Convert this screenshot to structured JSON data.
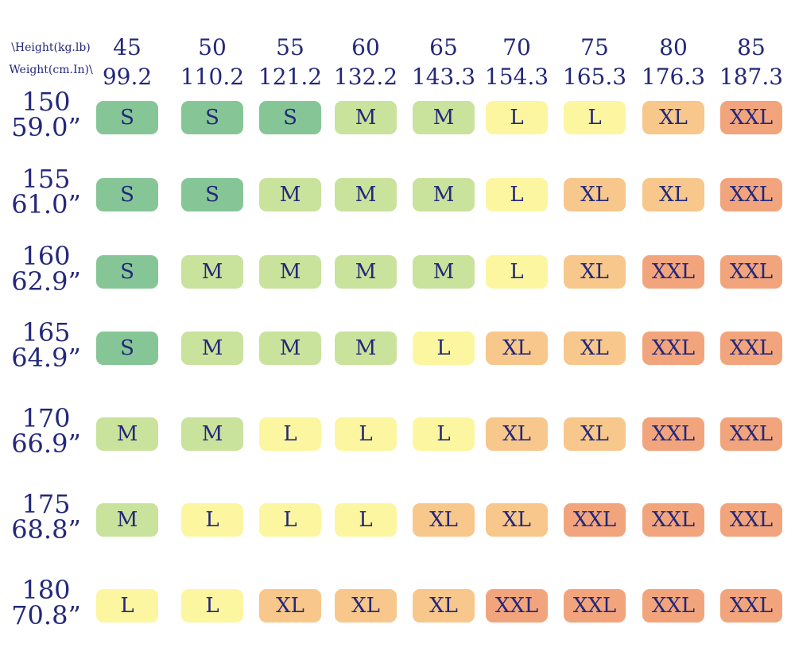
{
  "header": {
    "corner_top": "\\Height(kg.lb)",
    "corner_bottom": "Weight(cm.In)\\"
  },
  "columns": [
    {
      "kg": "45",
      "lb": "99.2"
    },
    {
      "kg": "50",
      "lb": "110.2"
    },
    {
      "kg": "55",
      "lb": "121.2"
    },
    {
      "kg": "60",
      "lb": "132.2"
    },
    {
      "kg": "65",
      "lb": "143.3"
    },
    {
      "kg": "70",
      "lb": "154.3"
    },
    {
      "kg": "75",
      "lb": "165.3"
    },
    {
      "kg": "80",
      "lb": "176.3"
    },
    {
      "kg": "85",
      "lb": "187.3"
    }
  ],
  "rows": [
    {
      "cm": "150",
      "in": "59.0”",
      "sizes": [
        "S",
        "S",
        "S",
        "M",
        "M",
        "L",
        "L",
        "XL",
        "XXL"
      ]
    },
    {
      "cm": "155",
      "in": "61.0”",
      "sizes": [
        "S",
        "S",
        "M",
        "M",
        "M",
        "L",
        "XL",
        "XL",
        "XXL"
      ]
    },
    {
      "cm": "160",
      "in": "62.9”",
      "sizes": [
        "S",
        "M",
        "M",
        "M",
        "M",
        "L",
        "XL",
        "XXL",
        "XXL"
      ]
    },
    {
      "cm": "165",
      "in": "64.9”",
      "sizes": [
        "S",
        "M",
        "M",
        "M",
        "L",
        "XL",
        "XL",
        "XXL",
        "XXL"
      ]
    },
    {
      "cm": "170",
      "in": "66.9”",
      "sizes": [
        "M",
        "M",
        "L",
        "L",
        "L",
        "XL",
        "XL",
        "XXL",
        "XXL"
      ]
    },
    {
      "cm": "175",
      "in": "68.8”",
      "sizes": [
        "M",
        "L",
        "L",
        "L",
        "XL",
        "XL",
        "XXL",
        "XXL",
        "XXL"
      ]
    },
    {
      "cm": "180",
      "in": "70.8”",
      "sizes": [
        "L",
        "L",
        "XL",
        "XL",
        "XL",
        "XXL",
        "XXL",
        "XXL",
        "XXL"
      ]
    }
  ],
  "size_colors": {
    "S": "#86c696",
    "M": "#c9e29c",
    "L": "#fcf6a0",
    "XL": "#f7c78b",
    "XXL": "#f2a57d"
  }
}
